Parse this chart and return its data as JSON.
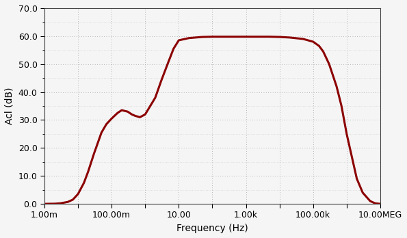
{
  "title": "",
  "xlabel": "Frequency (Hz)",
  "ylabel": "Acl (dB)",
  "xmin": 0.001,
  "xmax": 10000000.0,
  "ymin": 0.0,
  "ymax": 70.0,
  "yticks": [
    0.0,
    10.0,
    20.0,
    30.0,
    40.0,
    50.0,
    60.0,
    70.0
  ],
  "xtick_positions": [
    0.001,
    0.01,
    0.1,
    1.0,
    10.0,
    100.0,
    1000.0,
    10000.0,
    100000.0,
    1000000.0,
    10000000.0
  ],
  "xtick_labels": [
    "1.00m",
    "",
    "100.00m",
    "",
    "10.00",
    "",
    "1.00k",
    "",
    "100.00k",
    "",
    "10.00MEG"
  ],
  "line_color": "#8B0000",
  "line_width": 2.2,
  "background_color": "#f5f5f5",
  "grid_color": "#999999",
  "curve_points_x": [
    0.001,
    0.002,
    0.003,
    0.005,
    0.007,
    0.01,
    0.015,
    0.02,
    0.03,
    0.05,
    0.07,
    0.1,
    0.15,
    0.2,
    0.3,
    0.4,
    0.5,
    0.7,
    1.0,
    2.0,
    3.0,
    5.0,
    7.0,
    10.0,
    20.0,
    50.0,
    100.0,
    200.0,
    500.0,
    1000.0,
    2000.0,
    5000.0,
    10000.0,
    20000.0,
    50000.0,
    100000.0,
    150000.0,
    200000.0,
    300000.0,
    500000.0,
    700000.0,
    1000000.0,
    2000000.0,
    3000000.0,
    5000000.0,
    7000000.0,
    10000000.0
  ],
  "curve_points_y": [
    0.0,
    0.05,
    0.2,
    0.7,
    1.5,
    3.5,
    7.5,
    11.5,
    18.0,
    25.5,
    28.5,
    30.5,
    32.5,
    33.5,
    33.0,
    32.0,
    31.5,
    31.0,
    32.0,
    38.0,
    44.0,
    51.0,
    55.5,
    58.5,
    59.3,
    59.7,
    59.8,
    59.8,
    59.8,
    59.8,
    59.8,
    59.8,
    59.7,
    59.5,
    59.0,
    58.0,
    56.5,
    54.5,
    50.0,
    42.0,
    35.0,
    25.0,
    9.0,
    4.0,
    1.0,
    0.2,
    0.0
  ]
}
